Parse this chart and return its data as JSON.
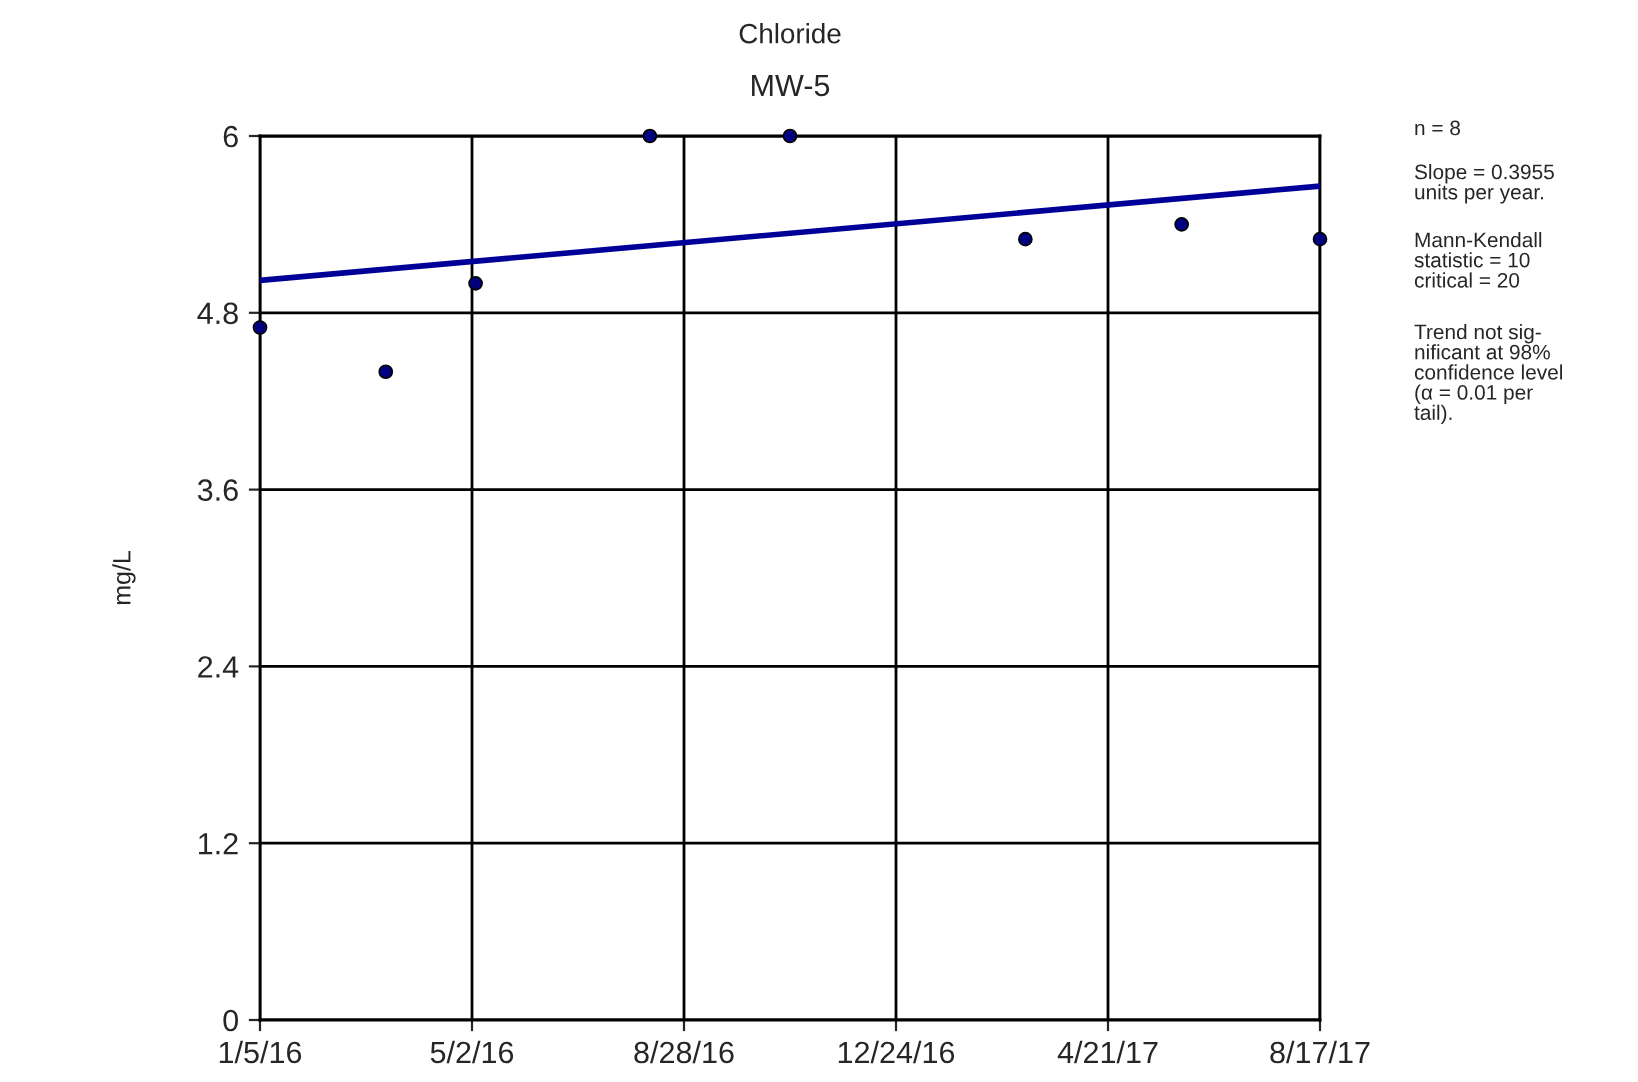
{
  "chart_data": {
    "type": "scatter",
    "title": "Chloride",
    "subtitle": "MW-5",
    "ylabel": "mg/L",
    "series": [
      {
        "color": "#000080",
        "marker": "circle",
        "x": [
          "2016-01-05",
          "2016-03-15",
          "2016-05-04",
          "2016-08-09",
          "2016-10-26",
          "2017-03-06",
          "2017-06-01",
          "2017-08-17"
        ],
        "values": [
          4.7,
          4.4,
          5.0,
          6.0,
          6.0,
          5.3,
          5.4,
          5.3
        ]
      },
      {
        "type": "line",
        "color": "#000099",
        "x": [
          "2016-01-05",
          "2017-08-17"
        ],
        "values": [
          5.02,
          5.66
        ]
      }
    ],
    "xlim": [
      "2016-01-05",
      "2017-08-17"
    ],
    "xticks": [
      {
        "value": "2016-01-05",
        "label": "1/5/16"
      },
      {
        "value": "2016-05-02",
        "label": "5/2/16"
      },
      {
        "value": "2016-08-28",
        "label": "8/28/16"
      },
      {
        "value": "2016-12-24",
        "label": "12/24/16"
      },
      {
        "value": "2017-04-21",
        "label": "4/21/17"
      },
      {
        "value": "2017-08-17",
        "label": "8/17/17"
      }
    ],
    "ylim": [
      0,
      6
    ],
    "yticks": [
      0,
      1.2,
      2.4,
      3.6,
      4.8,
      6
    ],
    "grid": true,
    "annotations": [
      "n = 8",
      "Slope = 0.3955\nunits per year.",
      "Mann-Kendall\nstatistic = 10\ncritical = 20",
      "Trend not sig-\nnificant at 98%\nconfidence level\n(α = 0.01 per\ntail)."
    ]
  }
}
